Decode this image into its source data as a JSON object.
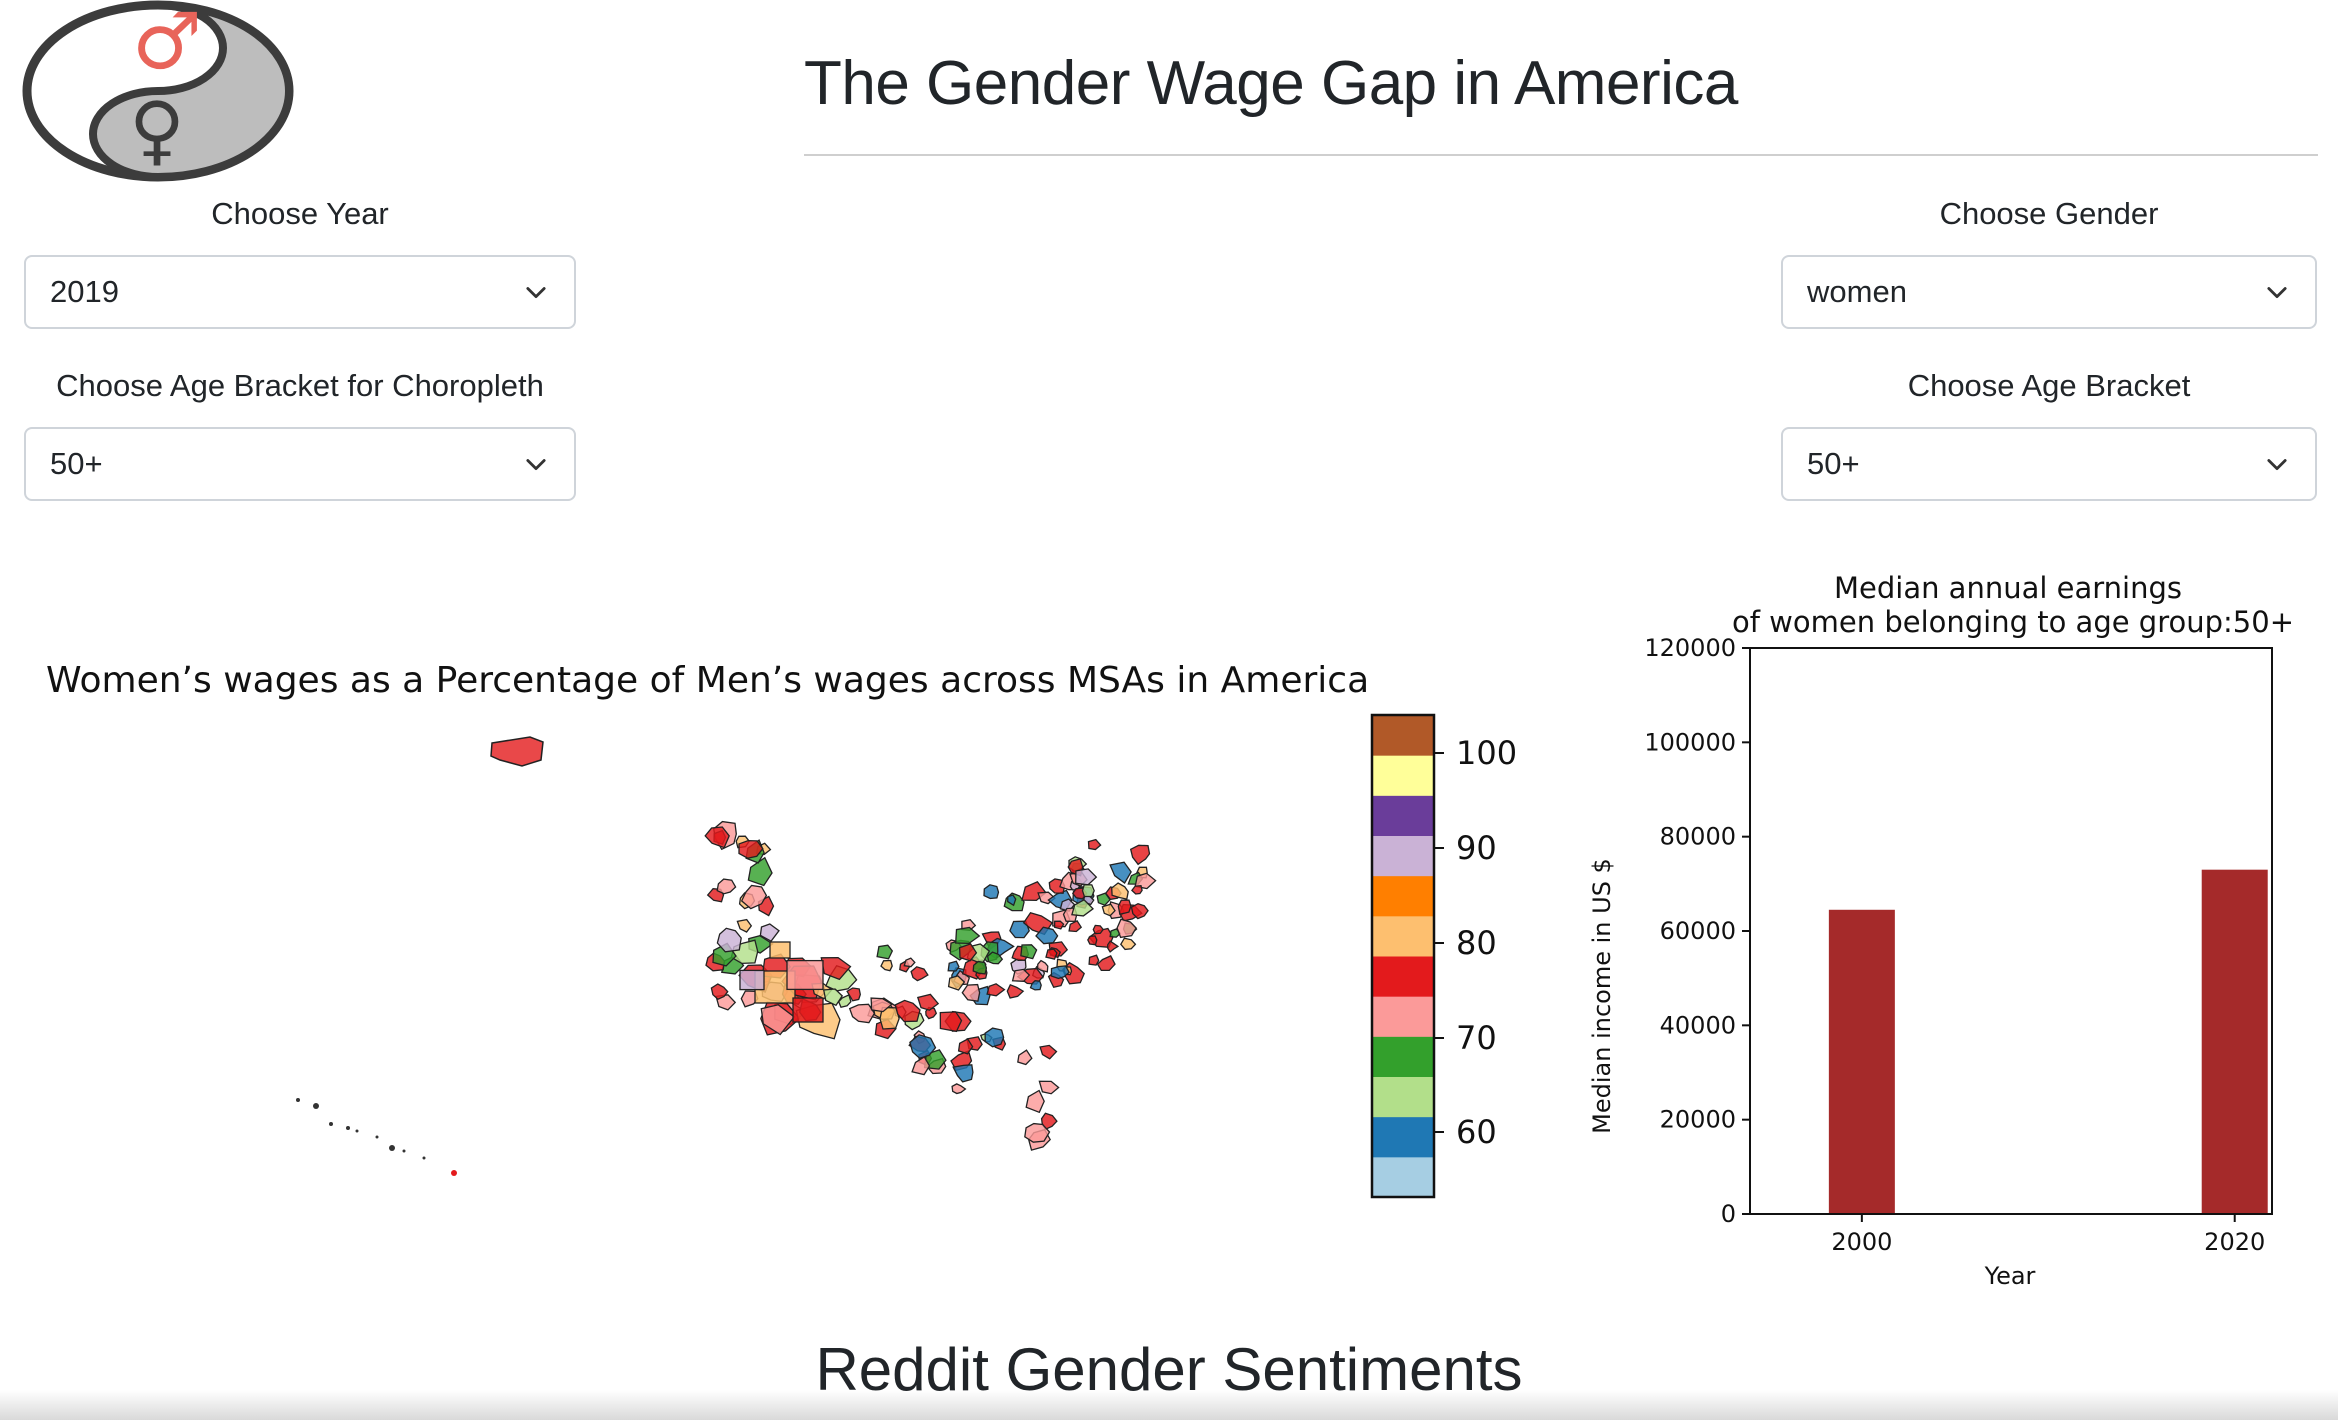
{
  "header": {
    "title": "The Gender Wage Gap in America",
    "logo": {
      "male_symbol": "♂",
      "female_symbol": "♀",
      "male_color": "#e8645a",
      "body_color": "#bdbdbd",
      "outline_color": "#3c3c3c"
    }
  },
  "controls": {
    "year": {
      "label": "Choose Year",
      "value": "2019"
    },
    "choropleth_age": {
      "label": "Choose Age Bracket for Choropleth",
      "value": "50+"
    },
    "gender": {
      "label": "Choose Gender",
      "value": "women"
    },
    "age": {
      "label": "Choose Age Bracket",
      "value": "50+"
    }
  },
  "map": {
    "title": "Women’s wages as a Percentage of Men’s wages across MSAs in America",
    "colorbar": {
      "ticks": [
        "100",
        "90",
        "80",
        "70",
        "60"
      ],
      "colors": [
        "#a6cee3",
        "#1f78b4",
        "#b2df8a",
        "#33a02c",
        "#fb9a99",
        "#e31a1c",
        "#fdbf6f",
        "#ff7f00",
        "#cab2d6",
        "#6a3d9a",
        "#ffff99",
        "#b15928"
      ]
    }
  },
  "chart_data": {
    "type": "bar",
    "title_line1": "Median annual earnings",
    "title_line2": "of women belonging to age group:50+",
    "xlabel": "Year",
    "ylabel": "Median income in US $",
    "x": [
      2000,
      2020
    ],
    "values": [
      64500,
      73000
    ],
    "x_ticks": [
      "2000",
      "2020"
    ],
    "ylim": [
      0,
      120000
    ],
    "y_ticks": [
      "0",
      "20000",
      "40000",
      "60000",
      "80000",
      "100000",
      "120000"
    ],
    "bar_color": "#a52a2a"
  },
  "footer": {
    "section_title": "Reddit Gender Sentiments"
  }
}
